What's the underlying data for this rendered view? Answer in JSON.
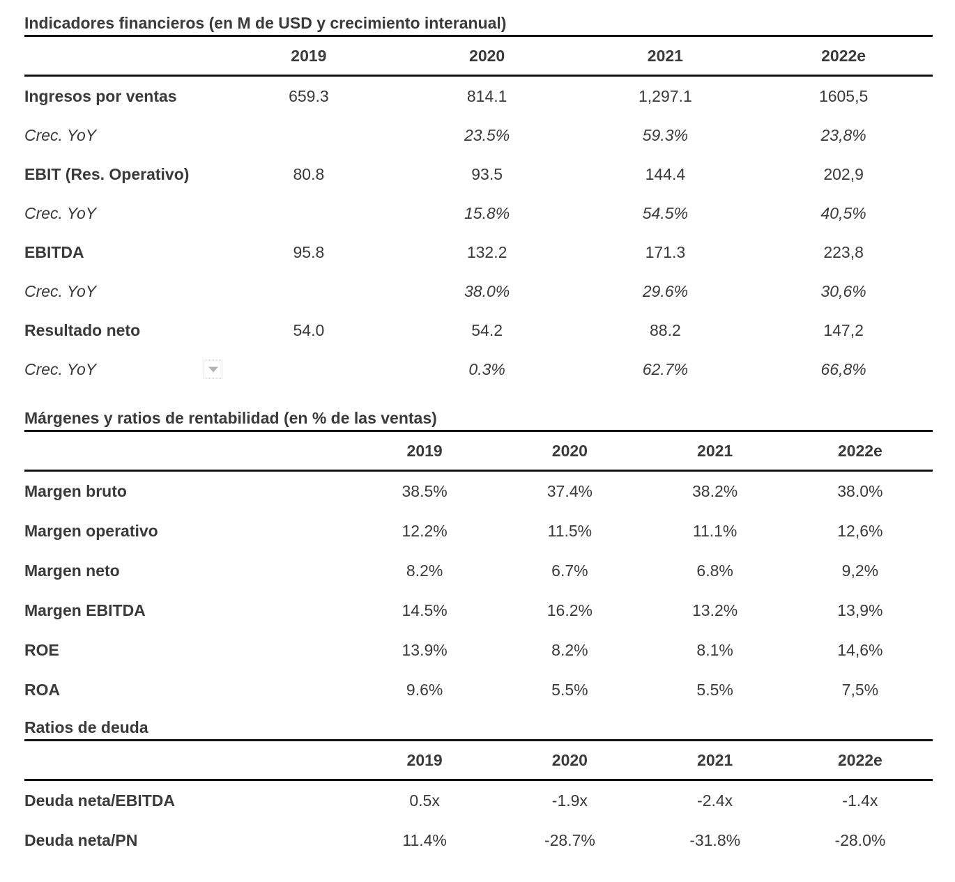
{
  "page": {
    "background": "#ffffff",
    "text_color": "#3a3a3a",
    "rule_color": "#121212",
    "dropdown_border_color": "#c9c9c9",
    "dropdown_arrow_color": "#b3b3b3"
  },
  "sections": [
    {
      "title": "Indicadores financieros (en M de USD y crecimiento interanual)",
      "columns": [
        "2019",
        "2020",
        "2021",
        "2022e"
      ],
      "rows": [
        {
          "label": "Ingresos por ventas",
          "values": [
            "659.3",
            "814.1",
            "1,297.1",
            "1605,5"
          ]
        },
        {
          "label": "Crec. YoY",
          "values": [
            "",
            "23.5%",
            "59.3%",
            "23,8%"
          ]
        },
        {
          "label": "EBIT (Res. Operativo)",
          "values": [
            "80.8",
            "93.5",
            "144.4",
            "202,9"
          ]
        },
        {
          "label": "Crec. YoY",
          "values": [
            "",
            "15.8%",
            "54.5%",
            "40,5%"
          ]
        },
        {
          "label": "EBITDA",
          "values": [
            "95.8",
            "132.2",
            "171.3",
            "223,8"
          ]
        },
        {
          "label": "Crec. YoY",
          "values": [
            "",
            "38.0%",
            "29.6%",
            "30,6%"
          ]
        },
        {
          "label": "Resultado neto",
          "values": [
            "54.0",
            "54.2",
            "88.2",
            "147,2"
          ]
        },
        {
          "label": "Crec. YoY",
          "values": [
            "",
            "0.3%",
            "62.7%",
            "66,8%"
          ]
        }
      ]
    },
    {
      "title": "Márgenes y ratios de rentabilidad (en % de las ventas)",
      "columns": [
        "2019",
        "2020",
        "2021",
        "2022e"
      ],
      "rows": [
        {
          "label": "Margen bruto",
          "values": [
            "38.5%",
            "37.4%",
            "38.2%",
            "38.0%"
          ]
        },
        {
          "label": "Margen operativo",
          "values": [
            "12.2%",
            "11.5%",
            "11.1%",
            "12,6%"
          ]
        },
        {
          "label": "Margen neto",
          "values": [
            "8.2%",
            "6.7%",
            "6.8%",
            "9,2%"
          ]
        },
        {
          "label": "Margen EBITDA",
          "values": [
            "14.5%",
            "16.2%",
            "13.2%",
            "13,9%"
          ]
        },
        {
          "label": "ROE",
          "values": [
            "13.9%",
            "8.2%",
            "8.1%",
            "14,6%"
          ]
        },
        {
          "label": "ROA",
          "values": [
            "9.6%",
            "5.5%",
            "5.5%",
            "7,5%"
          ]
        }
      ]
    },
    {
      "title": "Ratios de deuda",
      "columns": [
        "2019",
        "2020",
        "2021",
        "2022e"
      ],
      "rows": [
        {
          "label": "Deuda neta/EBITDA",
          "values": [
            "0.5x",
            "-1.9x",
            "-2.4x",
            "-1.4x"
          ]
        },
        {
          "label": "Deuda neta/PN",
          "values": [
            "11.4%",
            "-28.7%",
            "-31.8%",
            "-28.0%"
          ]
        }
      ]
    }
  ],
  "icons": {
    "dropdown": "dropdown-arrow"
  }
}
